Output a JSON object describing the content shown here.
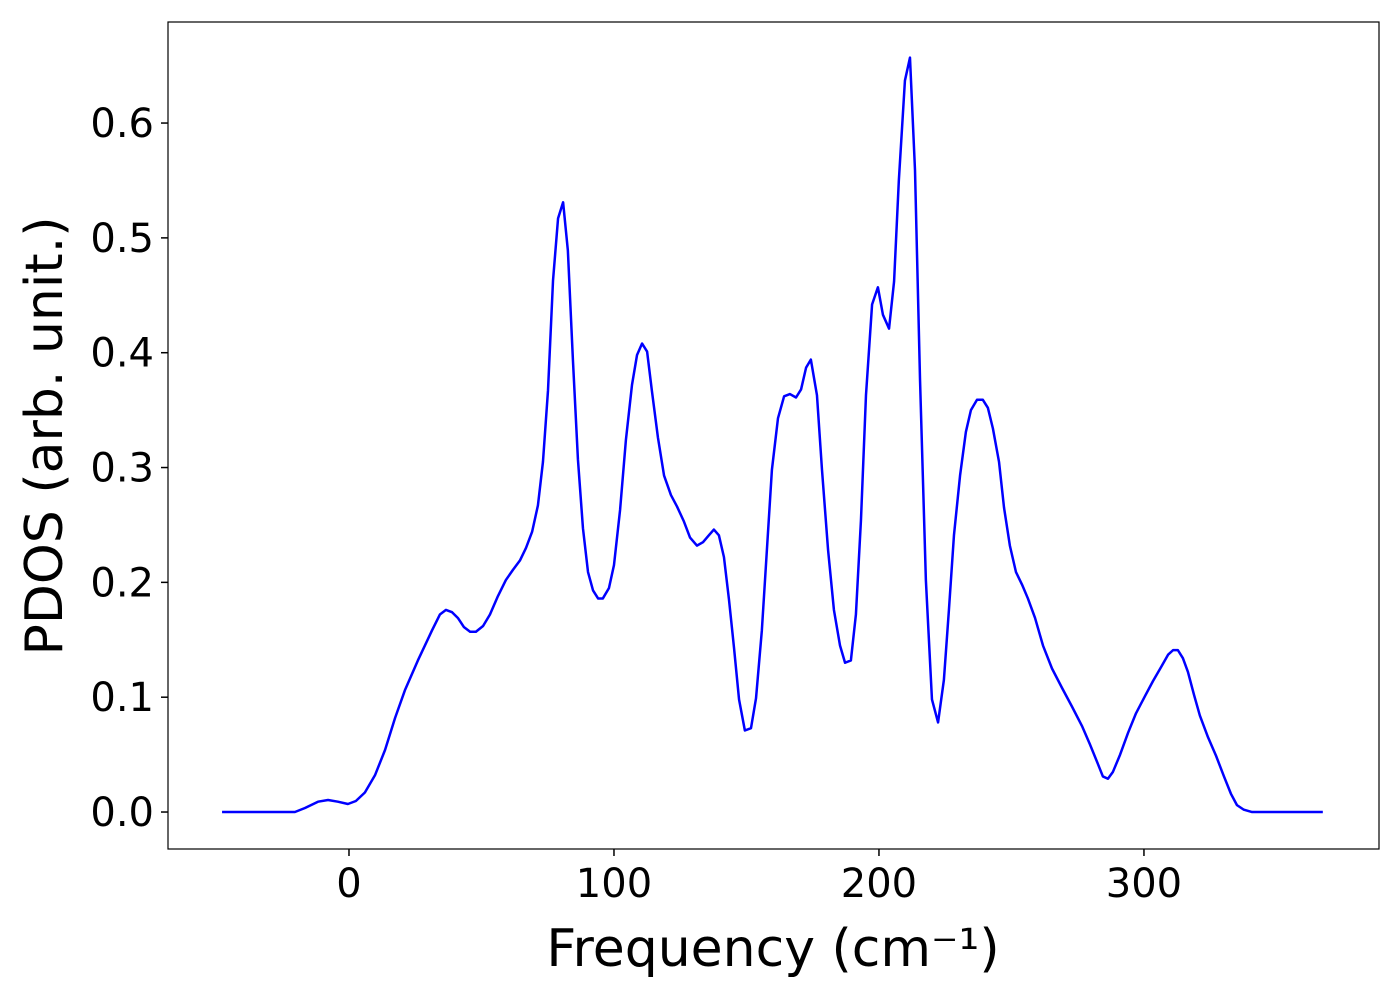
{
  "chart_data": {
    "type": "line",
    "xlabel": "Frequency (cm⁻¹)",
    "ylabel": "PDOS (arb. unit.)",
    "xlim": [
      -68.3,
      388.7
    ],
    "ylim": [
      -0.0322,
      0.688
    ],
    "xticks": [
      0,
      100,
      200,
      300
    ],
    "yticks": [
      {
        "value": 0,
        "label": "0.0"
      },
      0.1,
      0.2,
      0.3,
      0.4,
      0.5,
      0.6
    ],
    "grid": false,
    "x": [
      -47.9,
      -20.4,
      -16.6,
      -11.7,
      -7.9,
      -4.2,
      -0.4,
      2.6,
      6,
      9.8,
      13.6,
      17.4,
      21.1,
      26,
      31.3,
      34.3,
      36.6,
      38.9,
      41.1,
      43.4,
      45.7,
      47.9,
      50.6,
      53.2,
      56.2,
      59.2,
      61.9,
      64.5,
      66.8,
      69.1,
      71.3,
      73.2,
      75.1,
      77,
      78.9,
      80.8,
      82.6,
      84.5,
      86.4,
      88.3,
      90.2,
      92.1,
      94,
      95.8,
      98.1,
      100,
      102.3,
      104.5,
      106.8,
      108.7,
      110.6,
      112.5,
      114.3,
      116.6,
      118.9,
      121.5,
      123.8,
      126.4,
      128.7,
      131.3,
      133.6,
      135.8,
      137.7,
      139.6,
      141.5,
      143.4,
      145.3,
      147.2,
      149.4,
      151.7,
      153.6,
      155.8,
      157.7,
      159.6,
      161.9,
      164.2,
      166.4,
      168.7,
      170.6,
      172.5,
      174.3,
      176.6,
      178.5,
      180.8,
      183,
      185.3,
      187.2,
      189.4,
      191.3,
      193.2,
      195.1,
      197.4,
      199.6,
      201.5,
      203.8,
      205.7,
      207.5,
      209.8,
      211.7,
      213.6,
      215.5,
      217.7,
      220,
      222.3,
      224.5,
      226.4,
      228.3,
      230.6,
      232.8,
      234.7,
      237,
      239.2,
      241.1,
      243,
      245.3,
      247.2,
      249.4,
      251.7,
      254,
      256.2,
      258.9,
      261.9,
      265.3,
      269.1,
      272.8,
      276.6,
      279.6,
      282.6,
      284.5,
      286.4,
      288.3,
      291,
      294,
      297,
      300.4,
      303.4,
      306.4,
      309.1,
      311,
      312.8,
      314.7,
      316.6,
      318.9,
      321.1,
      324.2,
      327.2,
      330.2,
      332.8,
      335.1,
      337.7,
      340.8,
      367.5
    ],
    "series": [
      {
        "color": "#0000ff",
        "values": [
          0,
          0,
          0.0035,
          0.009,
          0.0105,
          0.009,
          0.007,
          0.0096,
          0.017,
          0.032,
          0.054,
          0.082,
          0.106,
          0.132,
          0.158,
          0.172,
          0.176,
          0.174,
          0.169,
          0.161,
          0.157,
          0.157,
          0.162,
          0.172,
          0.188,
          0.202,
          0.211,
          0.219,
          0.23,
          0.244,
          0.267,
          0.305,
          0.367,
          0.463,
          0.517,
          0.531,
          0.489,
          0.394,
          0.307,
          0.247,
          0.209,
          0.193,
          0.186,
          0.186,
          0.195,
          0.215,
          0.263,
          0.324,
          0.372,
          0.398,
          0.408,
          0.401,
          0.367,
          0.326,
          0.293,
          0.276,
          0.266,
          0.253,
          0.239,
          0.232,
          0.235,
          0.241,
          0.246,
          0.241,
          0.222,
          0.185,
          0.143,
          0.098,
          0.071,
          0.073,
          0.099,
          0.158,
          0.228,
          0.298,
          0.343,
          0.362,
          0.364,
          0.361,
          0.368,
          0.387,
          0.394,
          0.363,
          0.298,
          0.228,
          0.176,
          0.145,
          0.13,
          0.132,
          0.172,
          0.254,
          0.363,
          0.442,
          0.457,
          0.433,
          0.421,
          0.462,
          0.55,
          0.637,
          0.657,
          0.559,
          0.376,
          0.202,
          0.098,
          0.078,
          0.115,
          0.176,
          0.241,
          0.293,
          0.331,
          0.35,
          0.359,
          0.359,
          0.352,
          0.334,
          0.305,
          0.265,
          0.232,
          0.209,
          0.198,
          0.186,
          0.169,
          0.145,
          0.125,
          0.108,
          0.092,
          0.075,
          0.059,
          0.042,
          0.031,
          0.029,
          0.035,
          0.05,
          0.069,
          0.086,
          0.101,
          0.114,
          0.126,
          0.137,
          0.141,
          0.141,
          0.134,
          0.122,
          0.102,
          0.084,
          0.065,
          0.049,
          0.031,
          0.016,
          0.006,
          0.002,
          0,
          0
        ]
      }
    ]
  }
}
